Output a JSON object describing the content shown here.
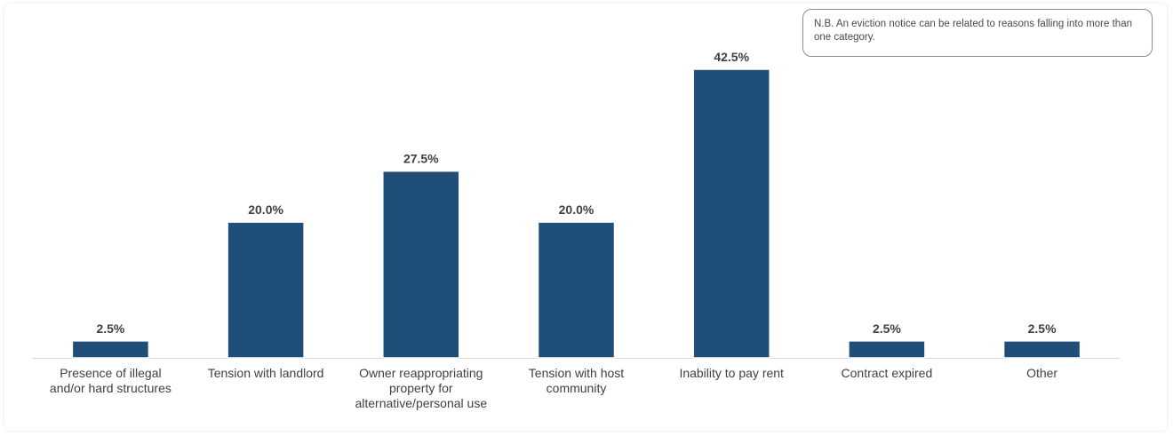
{
  "note": "N.B. An eviction notice can be related to reasons falling into more than one category.",
  "colors": {
    "bar": "#1f4e79",
    "axis": "#d9d9d9",
    "text": "#404040"
  },
  "chart_data": {
    "type": "bar",
    "title": "",
    "xlabel": "",
    "ylabel": "",
    "categories": [
      [
        "Presence of illegal",
        "and/or hard structures"
      ],
      [
        "Tension with landlord"
      ],
      [
        "Owner reappropriating",
        "property for",
        "alternative/personal use"
      ],
      [
        "Tension with host",
        "community"
      ],
      [
        "Inability to pay rent"
      ],
      [
        "Contract expired"
      ],
      [
        "Other"
      ]
    ],
    "values": [
      2.5,
      20.0,
      27.5,
      20.0,
      42.5,
      2.5,
      2.5
    ],
    "value_labels": [
      "2.5%",
      "20.0%",
      "27.5%",
      "20.0%",
      "42.5%",
      "2.5%",
      "2.5%"
    ],
    "ylim": [
      0,
      42.5
    ],
    "grid": false,
    "legend": "none"
  }
}
